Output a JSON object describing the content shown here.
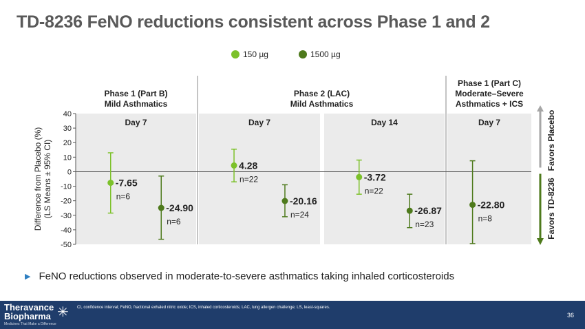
{
  "title": "TD-8236 FeNO reductions consistent across Phase 1 and 2",
  "legend": [
    {
      "label": "150 µg",
      "color": "#7cc12a"
    },
    {
      "label": "1500 µg",
      "color": "#4e7a1c"
    }
  ],
  "chart_data": {
    "type": "scatter",
    "title": "TD-8236 FeNO reductions consistent across Phase 1 and 2",
    "ylabel": "Difference from Placebo (%)\n(LS Means ± 95% CI)",
    "ylabel_lines": [
      "Difference from Placebo (%)",
      "(LS Means ± 95% CI)"
    ],
    "ylim": [
      -50,
      40
    ],
    "yticks": [
      40,
      30,
      20,
      10,
      0,
      -10,
      -20,
      -30,
      -40,
      -50
    ],
    "grid": false,
    "legend_position": "top-center",
    "groups": [
      {
        "header_lines": [
          "Phase 1 (Part B)",
          "Mild Asthmatics"
        ],
        "panels": [
          "Day 7"
        ]
      },
      {
        "header_lines": [
          "Phase 2 (LAC)",
          "Mild Asthmatics"
        ],
        "panels": [
          "Day 7",
          "Day 14"
        ]
      },
      {
        "header_lines": [
          "Phase 1 (Part C)",
          "Moderate–Severe",
          "Asthmatics + ICS"
        ],
        "panels": [
          "Day 7"
        ]
      }
    ],
    "panels": [
      {
        "label": "Day 7",
        "group": "Phase 1 (Part B)"
      },
      {
        "label": "Day 7",
        "group": "Phase 2 (LAC)"
      },
      {
        "label": "Day 14",
        "group": "Phase 2 (LAC)"
      },
      {
        "label": "Day 7",
        "group": "Phase 1 (Part C)"
      }
    ],
    "series": [
      {
        "name": "150 µg",
        "color": "#7cc12a",
        "points": [
          {
            "panel": 0,
            "value": -7.65,
            "ci_low": -28.5,
            "ci_high": 13,
            "label": "-7.65",
            "n": "n=6"
          },
          {
            "panel": 1,
            "value": 4.28,
            "ci_low": -7,
            "ci_high": 15.5,
            "label": "4.28",
            "n": "n=22"
          },
          {
            "panel": 2,
            "value": -3.72,
            "ci_low": -15.5,
            "ci_high": 8,
            "label": "-3.72",
            "n": "n=22"
          }
        ]
      },
      {
        "name": "1500 µg",
        "color": "#4e7a1c",
        "points": [
          {
            "panel": 0,
            "value": -24.9,
            "ci_low": -46.5,
            "ci_high": -3,
            "label": "-24.90",
            "n": "n=6"
          },
          {
            "panel": 1,
            "value": -20.16,
            "ci_low": -31,
            "ci_high": -9,
            "label": "-20.16",
            "n": "n=24"
          },
          {
            "panel": 2,
            "value": -26.87,
            "ci_low": -38.5,
            "ci_high": -15.5,
            "label": "-26.87",
            "n": "n=23"
          },
          {
            "panel": 3,
            "value": -22.8,
            "ci_low": -49.5,
            "ci_high": 7.5,
            "label": "-22.80",
            "n": "n=8"
          }
        ]
      }
    ],
    "annotations": {
      "favors_placebo": "Favors Placebo",
      "favors_drug": "Favors TD-8236",
      "placebo_color": "#a6a6a6",
      "drug_color": "#4e7a1c"
    }
  },
  "bullet": "FeNO reductions observed in moderate-to-severe asthmatics taking inhaled corticosteroids",
  "footer": {
    "logo_line1": "Theravance",
    "logo_line2": "Biopharma",
    "logo_tagline": "Medicines That Make a Difference",
    "footnote": "CI, confidence interval; FeNO, fractional exhaled nitric oxide; ICS, inhaled corticosteroids; LAC, lung allergen challenge; LS, least-squares.",
    "page_number": "36",
    "bg_color": "#1f3d6b"
  }
}
